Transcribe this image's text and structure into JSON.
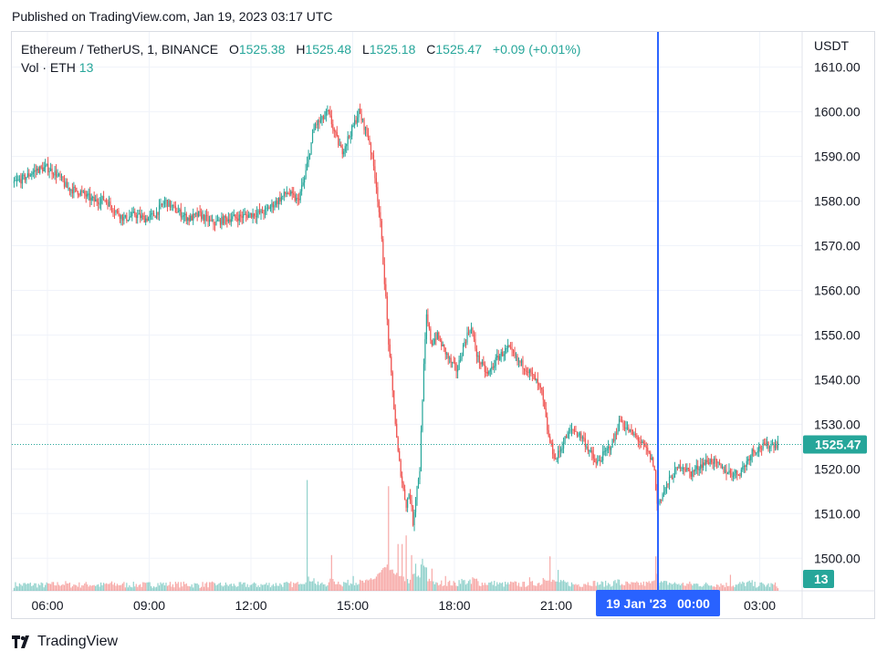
{
  "header": {
    "published": "Published on TradingView.com, Jan 19, 2023 03:17 UTC"
  },
  "legend": {
    "symbol": "Ethereum / TetherUS, 1, BINANCE",
    "o_label": "O",
    "o_value": "1525.38",
    "h_label": "H",
    "h_value": "1525.48",
    "l_label": "L",
    "l_value": "1525.18",
    "c_label": "C",
    "c_value": "1525.47",
    "change": "+0.09 (+0.01%)",
    "vol_label": "Vol · ETH",
    "vol_value": "13"
  },
  "footer": {
    "brand": "TradingView"
  },
  "colors": {
    "up": "#26a69a",
    "down": "#ef5350",
    "crosshair": "#2962ff",
    "grid": "#f0f3fa"
  },
  "chart_data": {
    "type": "candlestick",
    "currency": "USDT",
    "y_ticks": [
      1500,
      1510,
      1520,
      1530,
      1540,
      1550,
      1560,
      1570,
      1580,
      1590,
      1600,
      1610
    ],
    "ylim": [
      1492.7,
      1617.9
    ],
    "x_ticks": [
      "06:00",
      "09:00",
      "12:00",
      "15:00",
      "18:00",
      "21:00",
      "03:00"
    ],
    "x_tick_hours": [
      6,
      9,
      12,
      15,
      18,
      21,
      27
    ],
    "xlim_hours": [
      4.95,
      28.25
    ],
    "crosshair": {
      "hour": 24,
      "label": "19 Jan '23   00:00"
    },
    "last_price": 1525.47,
    "last_volume": "13",
    "grid": true,
    "path": [
      [
        5.0,
        1584
      ],
      [
        5.3,
        1585
      ],
      [
        5.7,
        1587
      ],
      [
        6.0,
        1587.5
      ],
      [
        6.3,
        1586
      ],
      [
        6.6,
        1583
      ],
      [
        7.0,
        1582
      ],
      [
        7.4,
        1580
      ],
      [
        7.7,
        1580.5
      ],
      [
        8.0,
        1578
      ],
      [
        8.3,
        1576
      ],
      [
        8.6,
        1577
      ],
      [
        8.9,
        1576
      ],
      [
        9.2,
        1577
      ],
      [
        9.5,
        1580
      ],
      [
        9.8,
        1578
      ],
      [
        10.2,
        1576
      ],
      [
        10.5,
        1577
      ],
      [
        10.9,
        1575
      ],
      [
        11.3,
        1576
      ],
      [
        11.7,
        1576.5
      ],
      [
        12.0,
        1577
      ],
      [
        12.4,
        1577.5
      ],
      [
        12.8,
        1580
      ],
      [
        13.1,
        1582
      ],
      [
        13.4,
        1580
      ],
      [
        13.6,
        1585
      ],
      [
        13.9,
        1597
      ],
      [
        14.1,
        1598
      ],
      [
        14.3,
        1600
      ],
      [
        14.5,
        1595
      ],
      [
        14.7,
        1591
      ],
      [
        15.0,
        1596
      ],
      [
        15.2,
        1600
      ],
      [
        15.5,
        1594
      ],
      [
        15.7,
        1585
      ],
      [
        15.85,
        1574
      ],
      [
        16.0,
        1558
      ],
      [
        16.1,
        1546
      ],
      [
        16.25,
        1533
      ],
      [
        16.35,
        1524
      ],
      [
        16.5,
        1516
      ],
      [
        16.6,
        1512
      ],
      [
        16.7,
        1515
      ],
      [
        16.8,
        1508
      ],
      [
        16.9,
        1515
      ],
      [
        17.0,
        1520
      ],
      [
        17.1,
        1540
      ],
      [
        17.2,
        1554
      ],
      [
        17.35,
        1548
      ],
      [
        17.5,
        1550
      ],
      [
        17.7,
        1547
      ],
      [
        17.9,
        1544
      ],
      [
        18.1,
        1542
      ],
      [
        18.3,
        1548
      ],
      [
        18.5,
        1552
      ],
      [
        18.7,
        1545
      ],
      [
        19.0,
        1541
      ],
      [
        19.3,
        1545
      ],
      [
        19.6,
        1547
      ],
      [
        19.9,
        1544
      ],
      [
        20.1,
        1543
      ],
      [
        20.4,
        1540
      ],
      [
        20.6,
        1537
      ],
      [
        20.8,
        1527
      ],
      [
        21.0,
        1522
      ],
      [
        21.3,
        1527
      ],
      [
        21.5,
        1529
      ],
      [
        21.8,
        1527
      ],
      [
        22.0,
        1524
      ],
      [
        22.2,
        1521
      ],
      [
        22.4,
        1523
      ],
      [
        22.7,
        1526
      ],
      [
        22.9,
        1531
      ],
      [
        23.1,
        1529
      ],
      [
        23.4,
        1527
      ],
      [
        23.7,
        1524
      ],
      [
        23.9,
        1521
      ],
      [
        24.0,
        1512
      ],
      [
        24.2,
        1515
      ],
      [
        24.4,
        1518
      ],
      [
        24.7,
        1521
      ],
      [
        25.0,
        1519
      ],
      [
        25.3,
        1521
      ],
      [
        25.6,
        1522
      ],
      [
        25.9,
        1520
      ],
      [
        26.2,
        1519
      ],
      [
        26.4,
        1519
      ],
      [
        26.6,
        1521
      ],
      [
        26.8,
        1524
      ],
      [
        27.1,
        1525
      ],
      [
        27.4,
        1525.5
      ],
      [
        27.55,
        1525.47
      ]
    ],
    "volume_spikes": [
      [
        13.65,
        0.9
      ],
      [
        14.35,
        0.29
      ],
      [
        15.0,
        0.12
      ],
      [
        15.8,
        0.15
      ],
      [
        16.05,
        0.85
      ],
      [
        16.3,
        0.38
      ],
      [
        16.45,
        0.38
      ],
      [
        16.55,
        0.45
      ],
      [
        16.7,
        0.29
      ],
      [
        16.85,
        0.22
      ],
      [
        17.05,
        0.26
      ],
      [
        17.3,
        0.18
      ],
      [
        17.7,
        0.12
      ],
      [
        18.5,
        0.11
      ],
      [
        20.2,
        0.11
      ],
      [
        20.8,
        0.28
      ],
      [
        21.05,
        0.17
      ],
      [
        23.9,
        0.28
      ],
      [
        26.1,
        0.13
      ],
      [
        9.0,
        0.07
      ],
      [
        8.2,
        0.06
      ],
      [
        11.0,
        0.05
      ],
      [
        12.1,
        0.06
      ]
    ]
  }
}
